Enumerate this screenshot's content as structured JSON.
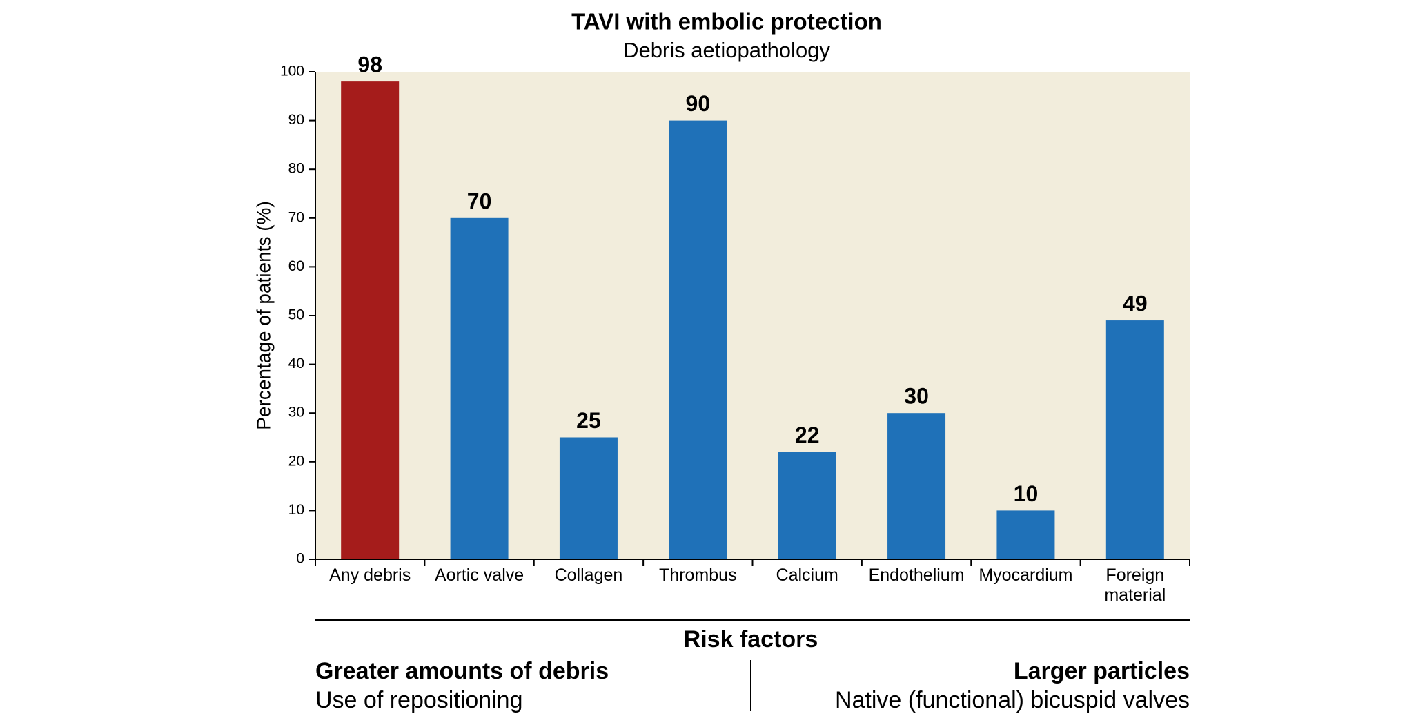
{
  "chart_data": {
    "type": "bar",
    "title": "TAVI with embolic protection",
    "subtitle": "Debris aetiopathology",
    "y_label": "Percentage of patients (%)",
    "categories": [
      "Any debris",
      "Aortic valve",
      "Collagen",
      "Thrombus",
      "Calcium",
      "Endothelium",
      "Myocardium",
      "Foreign material"
    ],
    "values": [
      98,
      70,
      25,
      90,
      22,
      30,
      10,
      49
    ],
    "colors": [
      "#a51c1b",
      "#1f71b8",
      "#1f71b8",
      "#1f71b8",
      "#1f71b8",
      "#1f71b8",
      "#1f71b8",
      "#1f71b8"
    ],
    "ylim": [
      0,
      100
    ],
    "yticks": [
      0,
      10,
      20,
      30,
      40,
      50,
      60,
      70,
      80,
      90,
      100
    ],
    "plot_background": "#f2eddc"
  },
  "risk_factors": {
    "title": "Risk factors",
    "left": {
      "heading": "Greater amounts of debris",
      "text": "Use of repositioning"
    },
    "right": {
      "heading": "Larger particles",
      "text": "Native (functional) bicuspid valves"
    }
  }
}
